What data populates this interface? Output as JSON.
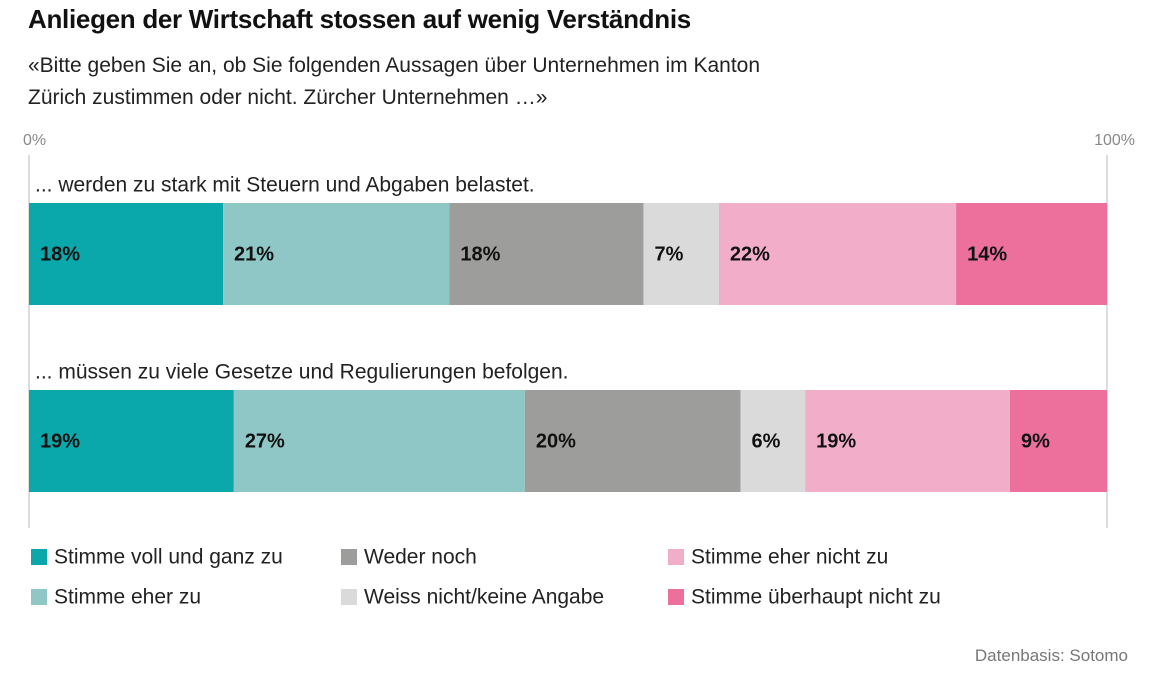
{
  "chart_data": {
    "type": "stacked_barh",
    "title": "Anliegen der Wirtschaft stossen auf wenig Verständnis",
    "subtitle": "«Bitte geben Sie an, ob Sie folgenden Aussagen über Unternehmen im Kanton Zürich zustimmen oder nicht. Zürcher Unternehmen …»",
    "source": "Datenbasis: Sotomo",
    "categories": [
      "... werden zu stark mit Steuern und Abgaben belastet.",
      "... müssen zu viele Gesetze und Regulierungen befolgen."
    ],
    "series": [
      {
        "name": "Stimme voll und ganz zu",
        "color": "#0aa8ab",
        "values": [
          18,
          19
        ],
        "value_labels": [
          "18%",
          "19%"
        ]
      },
      {
        "name": "Stimme eher zu",
        "color": "#8fc6c6",
        "values": [
          21,
          27
        ],
        "value_labels": [
          "21%",
          "27%"
        ]
      },
      {
        "name": "Weder noch",
        "color": "#9d9d9c",
        "values": [
          18,
          20
        ],
        "value_labels": [
          "18%",
          "20%"
        ]
      },
      {
        "name": "Weiss nicht/keine Angabe",
        "color": "#dadada",
        "values": [
          7,
          6
        ],
        "value_labels": [
          "7%",
          "6%"
        ]
      },
      {
        "name": "Stimme eher nicht zu",
        "color": "#f2aec9",
        "values": [
          22,
          19
        ],
        "value_labels": [
          "22%",
          "19%"
        ]
      },
      {
        "name": "Stimme überhaupt nicht zu",
        "color": "#ec6f9c",
        "values": [
          14,
          9
        ],
        "value_labels": [
          "14%",
          "9%"
        ]
      }
    ],
    "xlim": [
      0,
      100
    ],
    "xticks": [
      {
        "value": 0,
        "label": "0%"
      },
      {
        "value": 100,
        "label": "100%"
      }
    ],
    "grid": true,
    "legend": "bottom"
  }
}
